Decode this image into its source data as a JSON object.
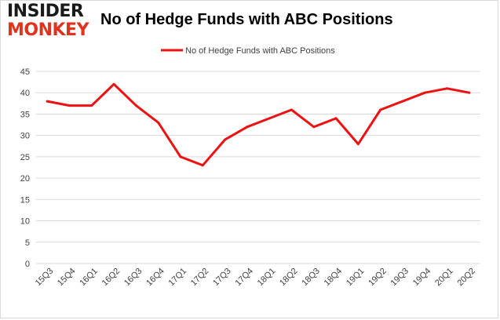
{
  "header": {
    "logo_line1": "INSIDER",
    "logo_line2": "MONKEY",
    "title": "No of Hedge Funds with ABC Positions"
  },
  "colors": {
    "series": "#ee1111",
    "grid": "#d9d9d9",
    "axis_text": "#404040"
  },
  "chart_data": {
    "type": "line",
    "title": "No of Hedge Funds with ABC Positions",
    "categories": [
      "15Q3",
      "15Q4",
      "16Q1",
      "16Q2",
      "16Q3",
      "16Q4",
      "17Q1",
      "17Q2",
      "17Q3",
      "17Q4",
      "18Q1",
      "18Q2",
      "18Q3",
      "18Q4",
      "19Q1",
      "19Q2",
      "19Q3",
      "19Q4",
      "20Q1",
      "20Q2"
    ],
    "series": [
      {
        "name": "No of Hedge Funds with ABC Positions",
        "values": [
          38,
          37,
          37,
          42,
          37,
          33,
          25,
          23,
          29,
          32,
          34,
          36,
          32,
          34,
          28,
          36,
          38,
          40,
          41,
          40
        ]
      }
    ],
    "ylim": [
      0,
      45
    ],
    "yticks": [
      0,
      5,
      10,
      15,
      20,
      25,
      30,
      35,
      40,
      45
    ],
    "grid": "horizontal",
    "legend": "top-center"
  }
}
